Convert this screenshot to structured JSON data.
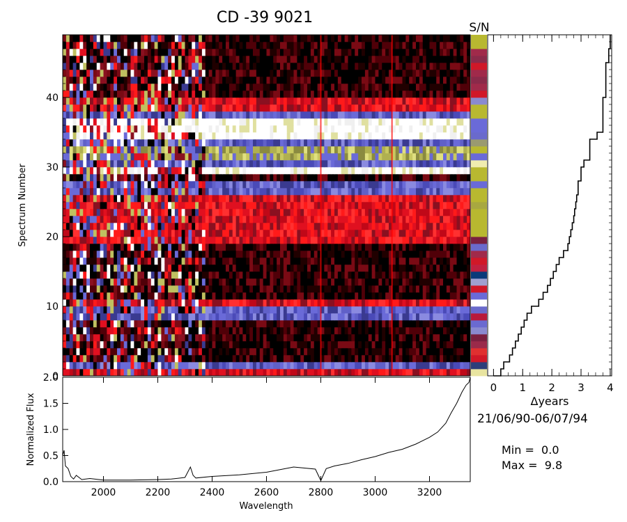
{
  "title": "CD  -39 9021",
  "chart_data": [
    {
      "id": "trailed-spectra",
      "type": "heatmap",
      "ylabel": "Spectrum Number",
      "xlim": [
        1850,
        3350
      ],
      "ylim": [
        0,
        49
      ],
      "yticks": [
        0,
        10,
        20,
        30,
        40
      ],
      "rows": 49,
      "colormap": [
        "#000000",
        "#8a1020",
        "#ff1a1a",
        "#6a6ad8",
        "#b0b060",
        "#ffffff"
      ],
      "bands": [
        {
          "from": 0,
          "to": 1,
          "kind": "red"
        },
        {
          "from": 1,
          "to": 2,
          "kind": "blue"
        },
        {
          "from": 2,
          "to": 8,
          "kind": "dark"
        },
        {
          "from": 8,
          "to": 9,
          "kind": "blue"
        },
        {
          "from": 9,
          "to": 10,
          "kind": "blue"
        },
        {
          "from": 10,
          "to": 11,
          "kind": "red"
        },
        {
          "from": 11,
          "to": 19,
          "kind": "dark"
        },
        {
          "from": 19,
          "to": 26,
          "kind": "red"
        },
        {
          "from": 26,
          "to": 28,
          "kind": "blue"
        },
        {
          "from": 28,
          "to": 29,
          "kind": "dark"
        },
        {
          "from": 29,
          "to": 30,
          "kind": "white"
        },
        {
          "from": 30,
          "to": 31,
          "kind": "blue"
        },
        {
          "from": 31,
          "to": 33,
          "kind": "yellow"
        },
        {
          "from": 33,
          "to": 34,
          "kind": "blue"
        },
        {
          "from": 34,
          "to": 37,
          "kind": "white"
        },
        {
          "from": 37,
          "to": 38,
          "kind": "blue"
        },
        {
          "from": 38,
          "to": 40,
          "kind": "red"
        },
        {
          "from": 40,
          "to": 41,
          "kind": "dark"
        },
        {
          "from": 41,
          "to": 46,
          "kind": "dark"
        },
        {
          "from": 46,
          "to": 49,
          "kind": "dark"
        }
      ],
      "absorption_lines": [
        2800,
        3062
      ]
    },
    {
      "id": "sn-strip",
      "type": "heatmap",
      "title": "S/N",
      "colors": [
        "#e8e4a0",
        "#2c3e7a",
        "#d01828",
        "#e03030",
        "#9a2a4a",
        "#7a2040",
        "#8a8ad0",
        "#6a6ad0",
        "#b81a3a",
        "#6a6acc",
        "#ffffff",
        "#6a6ad8",
        "#d01828",
        "#a0a0d0",
        "#0a3a7a",
        "#c02040",
        "#d01828",
        "#a02a4a",
        "#6a6acc",
        "#7a2040",
        "#b8b830",
        "#b8b830",
        "#b8b830",
        "#b8b830",
        "#a8a840",
        "#b8b830",
        "#b8b830",
        "#6a6ad8",
        "#b8b830",
        "#b8b830",
        "#f0ecb0",
        "#6a6ad8",
        "#b8b830",
        "#9a9a70",
        "#6a6acc",
        "#6a6ad8",
        "#6a6ad8",
        "#b8b830",
        "#b8b830",
        "#8a8ad0",
        "#d01828",
        "#a02a4a",
        "#8a2a4a",
        "#a02a4a",
        "#d01828",
        "#8a2a4a",
        "#a02a4a",
        "#b8b830",
        "#b8b830"
      ]
    },
    {
      "id": "time-plot",
      "type": "line",
      "xlabel": "Δyears",
      "xlim": [
        -0.2,
        4.05
      ],
      "ylim": [
        0,
        49
      ],
      "xticks": [
        0,
        1,
        2,
        3,
        4
      ],
      "step": true,
      "x": [
        0,
        0.25,
        0.35,
        0.55,
        0.65,
        0.75,
        0.85,
        0.95,
        1.05,
        1.15,
        1.3,
        1.55,
        1.7,
        1.85,
        1.95,
        2.05,
        2.15,
        2.25,
        2.4,
        2.55,
        2.6,
        2.65,
        2.7,
        2.75,
        2.78,
        2.82,
        2.85,
        2.9,
        3.0,
        3.1,
        3.3,
        3.55,
        3.75,
        3.85,
        3.95,
        4.0
      ],
      "y": [
        0,
        1,
        2,
        3,
        4,
        5,
        6,
        7,
        8,
        9,
        10,
        11,
        12,
        13,
        14,
        15,
        16,
        17,
        18,
        19,
        20,
        21,
        22,
        23,
        24,
        25,
        26,
        28,
        30,
        31,
        34,
        35,
        40,
        45,
        47,
        49
      ]
    },
    {
      "id": "mean-spectrum",
      "type": "line",
      "xlabel": "Wavelength",
      "ylabel": "Normalized Flux",
      "xlim": [
        1850,
        3350
      ],
      "ylim": [
        0,
        2.0
      ],
      "xticks": [
        2000,
        2200,
        2400,
        2600,
        2800,
        3000,
        3200
      ],
      "yticks": [
        0.0,
        0.5,
        1.0,
        1.5,
        2.0
      ],
      "x": [
        1850,
        1855,
        1860,
        1870,
        1880,
        1890,
        1900,
        1920,
        1950,
        2000,
        2100,
        2200,
        2250,
        2300,
        2320,
        2330,
        2340,
        2400,
        2500,
        2600,
        2700,
        2780,
        2800,
        2820,
        2850,
        2900,
        2950,
        3000,
        3050,
        3100,
        3150,
        3200,
        3230,
        3260,
        3280,
        3300,
        3320,
        3335,
        3345,
        3350
      ],
      "y": [
        0.5,
        0.6,
        0.3,
        0.25,
        0.1,
        0.05,
        0.12,
        0.04,
        0.06,
        0.03,
        0.03,
        0.04,
        0.05,
        0.08,
        0.28,
        0.12,
        0.07,
        0.1,
        0.13,
        0.18,
        0.28,
        0.24,
        0.02,
        0.25,
        0.3,
        0.35,
        0.42,
        0.48,
        0.56,
        0.62,
        0.72,
        0.85,
        0.95,
        1.12,
        1.32,
        1.5,
        1.72,
        1.85,
        1.9,
        2.0
      ]
    }
  ],
  "info": {
    "date_range": "21/06/90-06/07/94",
    "min_line": "Min =  0.0",
    "max_line": "Max =  9.8"
  }
}
